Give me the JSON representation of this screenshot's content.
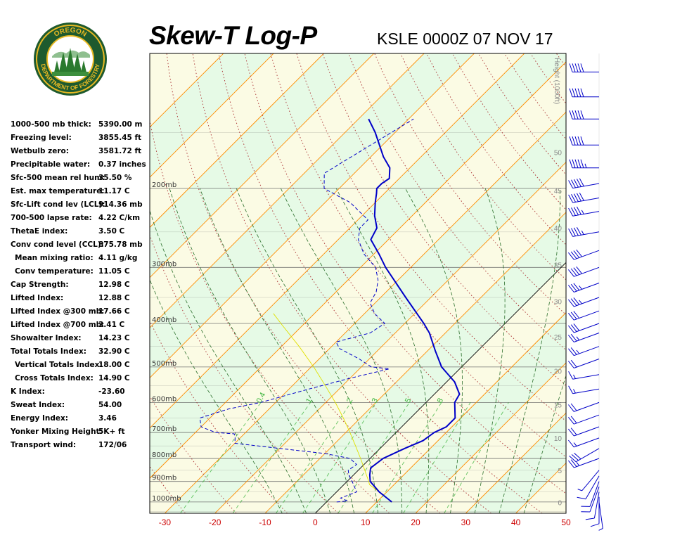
{
  "header": {
    "title": "Skew-T Log-P",
    "subtitle": "KSLE 0000Z 07 NOV 17"
  },
  "logo": {
    "text_top": "OREGON",
    "text_bottom": "DEPARTMENT OF FORESTRY",
    "colors": {
      "ring": "#1e5a2e",
      "gold": "#e8b923",
      "tree": "#2b7a2e",
      "sky": "#ffffff"
    }
  },
  "stats": [
    {
      "label": "1000-500 mb thick:",
      "value": "5390.00 m",
      "indent": false
    },
    {
      "label": "Freezing level:",
      "value": "3855.45 ft",
      "indent": false
    },
    {
      "label": "Wetbulb zero:",
      "value": "3581.72 ft",
      "indent": false
    },
    {
      "label": "Precipitable water:",
      "value": "0.37 inches",
      "indent": false
    },
    {
      "label": "Sfc-500 mean rel hum:",
      "value": "35.50 %",
      "indent": false
    },
    {
      "label": "Est. max temperature:",
      "value": "11.17 C",
      "indent": false
    },
    {
      "label": "Sfc-Lift cond lev (LCL):",
      "value": "914.36 mb",
      "indent": false
    },
    {
      "label": "700-500 lapse rate:",
      "value": "4.22 C/km",
      "indent": false
    },
    {
      "label": "ThetaE index:",
      "value": "3.50 C",
      "indent": false
    },
    {
      "label": "Conv cond level (CCL):",
      "value": "875.78 mb",
      "indent": false
    },
    {
      "label": "Mean mixing ratio:",
      "value": "4.11 g/kg",
      "indent": true
    },
    {
      "label": "Conv temperature:",
      "value": "11.05 C",
      "indent": true
    },
    {
      "label": "Cap Strength:",
      "value": "12.98 C",
      "indent": false
    },
    {
      "label": "Lifted Index:",
      "value": "12.88 C",
      "indent": false
    },
    {
      "label": "Lifted Index @300 mb:",
      "value": "17.66 C",
      "indent": false
    },
    {
      "label": "Lifted Index @700 mb:",
      "value": "3.41 C",
      "indent": false
    },
    {
      "label": "Showalter Index:",
      "value": "14.23 C",
      "indent": false
    },
    {
      "label": "Total Totals Index:",
      "value": "32.90 C",
      "indent": false
    },
    {
      "label": "Vertical Totals Index:",
      "value": "18.00 C",
      "indent": true
    },
    {
      "label": "Cross Totals Index:",
      "value": "14.90 C",
      "indent": true
    },
    {
      "label": "K Index:",
      "value": "-23.60",
      "indent": false
    },
    {
      "label": "Sweat Index:",
      "value": "54.00",
      "indent": false
    },
    {
      "label": "Energy Index:",
      "value": "3.46",
      "indent": false
    },
    {
      "label": "Yonker Mixing Height:",
      "value": "5K+ ft",
      "indent": false
    },
    {
      "label": "Transport wind:",
      "value": "172/06",
      "indent": false
    }
  ],
  "chart_data": {
    "type": "line",
    "diagram": "skew-t log-p",
    "xlim": [
      -33,
      50
    ],
    "plim": [
      1060,
      100
    ],
    "x_ticks": [
      -30,
      -20,
      -10,
      0,
      10,
      20,
      30,
      40,
      50
    ],
    "pressure_lines": [
      {
        "p": 1000,
        "label": "1000mb"
      },
      {
        "p": 900,
        "label": "900mb"
      },
      {
        "p": 800,
        "label": "800mb"
      },
      {
        "p": 700,
        "label": "700mb"
      },
      {
        "p": 600,
        "label": "600mb"
      },
      {
        "p": 500,
        "label": "500mb"
      },
      {
        "p": 400,
        "label": "400mb"
      },
      {
        "p": 300,
        "label": "300mb"
      },
      {
        "p": 200,
        "label": "200mb"
      }
    ],
    "height_axis": {
      "label": "Height (1000ft)",
      "ticks": [
        {
          "label": "0",
          "p": 1002
        },
        {
          "label": "5",
          "p": 850
        },
        {
          "label": "10",
          "p": 720
        },
        {
          "label": "15",
          "p": 607
        },
        {
          "label": "20",
          "p": 510
        },
        {
          "label": "25",
          "p": 428
        },
        {
          "label": "30",
          "p": 357
        },
        {
          "label": "35",
          "p": 296
        },
        {
          "label": "40",
          "p": 245
        },
        {
          "label": "45",
          "p": 202
        },
        {
          "label": "50",
          "p": 166
        }
      ]
    },
    "mixing_ratio_labels": [
      "0.4",
      "1",
      "2",
      "3",
      "5",
      "8"
    ],
    "mixing_ratios": [
      0.4,
      1,
      2,
      3,
      5,
      8,
      12,
      20
    ],
    "isotherms": [
      -110,
      -100,
      -90,
      -80,
      -70,
      -60,
      -50,
      -40,
      -30,
      -20,
      -10,
      0,
      10,
      20,
      30,
      40,
      50
    ],
    "dry_adiabats_theta_c": [
      -30,
      -20,
      -10,
      0,
      10,
      20,
      30,
      40,
      50,
      60,
      70,
      80,
      90,
      100,
      110,
      120,
      130,
      140,
      150,
      160,
      170
    ],
    "moist_adiabats_c": [
      -10,
      -5,
      0,
      5,
      10,
      15,
      20,
      25,
      30,
      35,
      40
    ],
    "series": [
      {
        "name": "temperature",
        "color": "#0000c8",
        "points": [
          [
            1000,
            13.0
          ],
          [
            950,
            8.5
          ],
          [
            900,
            4.6
          ],
          [
            870,
            3.2
          ],
          [
            840,
            2.0
          ],
          [
            800,
            2.6
          ],
          [
            760,
            4.9
          ],
          [
            730,
            7.0
          ],
          [
            700,
            7.6
          ],
          [
            680,
            8.9
          ],
          [
            650,
            8.9
          ],
          [
            600,
            5.7
          ],
          [
            575,
            5.0
          ],
          [
            540,
            1.6
          ],
          [
            500,
            -4.0
          ],
          [
            460,
            -8.5
          ],
          [
            420,
            -13.2
          ],
          [
            400,
            -16.2
          ],
          [
            350,
            -25.0
          ],
          [
            300,
            -35.0
          ],
          [
            280,
            -39.0
          ],
          [
            260,
            -43.5
          ],
          [
            245,
            -44.6
          ],
          [
            230,
            -47.5
          ],
          [
            215,
            -50.0
          ],
          [
            205,
            -51.6
          ],
          [
            200,
            -52.5
          ],
          [
            195,
            -52.5
          ],
          [
            190,
            -52.0
          ],
          [
            180,
            -54.0
          ],
          [
            170,
            -57.5
          ],
          [
            150,
            -64.0
          ],
          [
            140,
            -68.0
          ]
        ]
      },
      {
        "name": "dewpoint",
        "color": "#0000c8",
        "points": [
          [
            1000,
            2.0
          ],
          [
            995,
            4.0
          ],
          [
            980,
            2.0
          ],
          [
            950,
            4.0
          ],
          [
            900,
            1.0
          ],
          [
            870,
            -1.0
          ],
          [
            850,
            -2.0
          ],
          [
            825,
            -1.5
          ],
          [
            800,
            -4.0
          ],
          [
            780,
            -10.0
          ],
          [
            760,
            -20.0
          ],
          [
            740,
            -30.0
          ],
          [
            720,
            -31.0
          ],
          [
            705,
            -32.0
          ],
          [
            700,
            -36.0
          ],
          [
            680,
            -40.0
          ],
          [
            650,
            -42.0
          ],
          [
            620,
            -38.0
          ],
          [
            600,
            -33.0
          ],
          [
            560,
            -26.0
          ],
          [
            530,
            -20.0
          ],
          [
            505,
            -14.0
          ],
          [
            500,
            -18.0
          ],
          [
            480,
            -22.0
          ],
          [
            455,
            -28.0
          ],
          [
            440,
            -30.0
          ],
          [
            420,
            -25.0
          ],
          [
            400,
            -24.0
          ],
          [
            380,
            -28.0
          ],
          [
            360,
            -31.0
          ],
          [
            340,
            -32.0
          ],
          [
            320,
            -34.0
          ],
          [
            300,
            -37.0
          ],
          [
            280,
            -42.0
          ],
          [
            260,
            -46.0
          ],
          [
            245,
            -48.0
          ],
          [
            235,
            -48.0
          ],
          [
            215,
            -55.0
          ],
          [
            200,
            -63.0
          ],
          [
            185,
            -66.0
          ],
          [
            140,
            -59.0
          ]
        ]
      },
      {
        "name": "parcel",
        "color": "#e0e000",
        "points": [
          [
            1000,
            13.0
          ],
          [
            950,
            8.5
          ],
          [
            915,
            5.1
          ],
          [
            900,
            4.3
          ],
          [
            850,
            1.3
          ],
          [
            800,
            -1.9
          ],
          [
            750,
            -5.4
          ],
          [
            700,
            -9.2
          ],
          [
            650,
            -13.4
          ],
          [
            600,
            -18.1
          ],
          [
            550,
            -23.5
          ],
          [
            500,
            -29.5
          ],
          [
            450,
            -36.5
          ],
          [
            400,
            -44.7
          ],
          [
            380,
            -48.2
          ]
        ]
      }
    ],
    "wind_barbs": [
      {
        "p": 1000,
        "dir": 172,
        "spd": 6
      },
      {
        "p": 975,
        "dir": 180,
        "spd": 10
      },
      {
        "p": 950,
        "dir": 190,
        "spd": 10
      },
      {
        "p": 925,
        "dir": 200,
        "spd": 10
      },
      {
        "p": 900,
        "dir": 200,
        "spd": 10
      },
      {
        "p": 875,
        "dir": 210,
        "spd": 10
      },
      {
        "p": 850,
        "dir": 220,
        "spd": 5
      },
      {
        "p": 800,
        "dir": 250,
        "spd": 25
      },
      {
        "p": 760,
        "dir": 240,
        "spd": 30
      },
      {
        "p": 720,
        "dir": 250,
        "spd": 15
      },
      {
        "p": 680,
        "dir": 250,
        "spd": 20
      },
      {
        "p": 640,
        "dir": 250,
        "spd": 20
      },
      {
        "p": 600,
        "dir": 250,
        "spd": 20
      },
      {
        "p": 560,
        "dir": 260,
        "spd": 15
      },
      {
        "p": 520,
        "dir": 260,
        "spd": 15
      },
      {
        "p": 480,
        "dir": 250,
        "spd": 20
      },
      {
        "p": 450,
        "dir": 250,
        "spd": 25
      },
      {
        "p": 420,
        "dir": 250,
        "spd": 25
      },
      {
        "p": 400,
        "dir": 250,
        "spd": 30
      },
      {
        "p": 375,
        "dir": 250,
        "spd": 30
      },
      {
        "p": 350,
        "dir": 250,
        "spd": 35
      },
      {
        "p": 325,
        "dir": 250,
        "spd": 35
      },
      {
        "p": 300,
        "dir": 250,
        "spd": 40
      },
      {
        "p": 275,
        "dir": 250,
        "spd": 40
      },
      {
        "p": 250,
        "dir": 260,
        "spd": 45
      },
      {
        "p": 225,
        "dir": 260,
        "spd": 45
      },
      {
        "p": 210,
        "dir": 260,
        "spd": 50
      },
      {
        "p": 195,
        "dir": 260,
        "spd": 50
      },
      {
        "p": 180,
        "dir": 270,
        "spd": 55
      },
      {
        "p": 160,
        "dir": 270,
        "spd": 50
      },
      {
        "p": 140,
        "dir": 270,
        "spd": 50
      },
      {
        "p": 125,
        "dir": 270,
        "spd": 50
      },
      {
        "p": 110,
        "dir": 270,
        "spd": 50
      }
    ],
    "colors": {
      "plot_bg_a": "#fbfbe4",
      "plot_bg_b": "#e6fae6",
      "isobar": "#666666",
      "isotherm": "#ff8c00",
      "zero_isotherm": "#000000",
      "dry_adiabat": "#b04040",
      "moist_adiabat": "#2a6e2a",
      "mixing_ratio": "#3cb43c",
      "x_tick_label": "#cc0000",
      "height_label": "#888888",
      "wind": "#0000c8"
    }
  }
}
